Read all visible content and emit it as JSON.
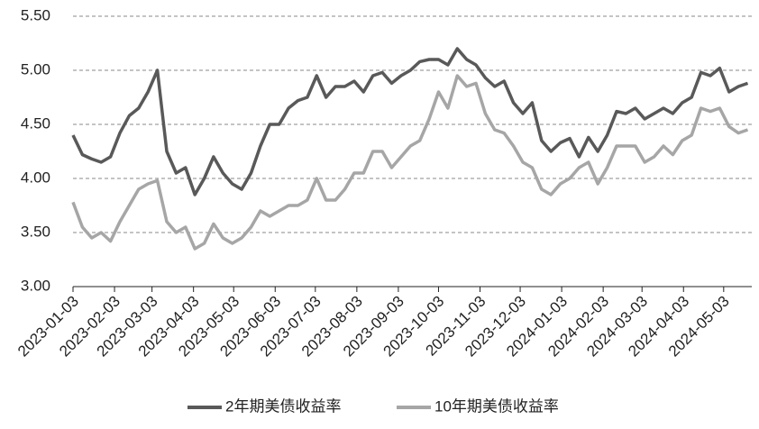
{
  "chart_data": {
    "type": "line",
    "x": [
      "2023-01-03",
      "2023-01-10",
      "2023-01-17",
      "2023-01-24",
      "2023-01-31",
      "2023-02-07",
      "2023-02-14",
      "2023-02-21",
      "2023-02-28",
      "2023-03-07",
      "2023-03-14",
      "2023-03-21",
      "2023-03-28",
      "2023-04-04",
      "2023-04-11",
      "2023-04-18",
      "2023-04-25",
      "2023-05-02",
      "2023-05-09",
      "2023-05-16",
      "2023-05-23",
      "2023-05-30",
      "2023-06-06",
      "2023-06-13",
      "2023-06-20",
      "2023-06-27",
      "2023-07-04",
      "2023-07-11",
      "2023-07-18",
      "2023-07-25",
      "2023-08-01",
      "2023-08-08",
      "2023-08-15",
      "2023-08-22",
      "2023-08-29",
      "2023-09-05",
      "2023-09-12",
      "2023-09-19",
      "2023-09-26",
      "2023-10-03",
      "2023-10-10",
      "2023-10-17",
      "2023-10-24",
      "2023-10-31",
      "2023-11-07",
      "2023-11-14",
      "2023-11-21",
      "2023-11-28",
      "2023-12-05",
      "2023-12-12",
      "2023-12-19",
      "2023-12-26",
      "2024-01-02",
      "2024-01-09",
      "2024-01-16",
      "2024-01-23",
      "2024-01-30",
      "2024-02-06",
      "2024-02-13",
      "2024-02-20",
      "2024-02-27",
      "2024-03-05",
      "2024-03-12",
      "2024-03-19",
      "2024-03-26",
      "2024-04-02",
      "2024-04-09",
      "2024-04-16",
      "2024-04-23",
      "2024-04-30",
      "2024-05-07",
      "2024-05-14",
      "2024-05-21"
    ],
    "series": [
      {
        "name": "2年期美债收益率",
        "color": "#595959",
        "values": [
          4.4,
          4.22,
          4.18,
          4.15,
          4.2,
          4.42,
          4.58,
          4.65,
          4.8,
          5.0,
          4.25,
          4.05,
          4.1,
          3.85,
          4.0,
          4.2,
          4.05,
          3.95,
          3.9,
          4.05,
          4.3,
          4.5,
          4.5,
          4.65,
          4.72,
          4.75,
          4.95,
          4.75,
          4.85,
          4.85,
          4.9,
          4.8,
          4.95,
          4.98,
          4.88,
          4.95,
          5.0,
          5.08,
          5.1,
          5.1,
          5.05,
          5.2,
          5.1,
          5.05,
          4.93,
          4.85,
          4.9,
          4.7,
          4.6,
          4.7,
          4.35,
          4.25,
          4.33,
          4.37,
          4.2,
          4.38,
          4.25,
          4.4,
          4.62,
          4.6,
          4.65,
          4.55,
          4.6,
          4.65,
          4.6,
          4.7,
          4.75,
          4.98,
          4.95,
          5.02,
          4.8,
          4.85,
          4.88
        ]
      },
      {
        "name": "10年期美债收益率",
        "color": "#a6a6a6",
        "values": [
          3.78,
          3.55,
          3.45,
          3.5,
          3.42,
          3.6,
          3.75,
          3.9,
          3.95,
          3.98,
          3.6,
          3.5,
          3.55,
          3.35,
          3.4,
          3.58,
          3.45,
          3.4,
          3.45,
          3.55,
          3.7,
          3.65,
          3.7,
          3.75,
          3.75,
          3.8,
          4.0,
          3.8,
          3.8,
          3.9,
          4.05,
          4.05,
          4.25,
          4.25,
          4.1,
          4.2,
          4.3,
          4.35,
          4.55,
          4.8,
          4.65,
          4.95,
          4.85,
          4.88,
          4.6,
          4.45,
          4.42,
          4.3,
          4.15,
          4.1,
          3.9,
          3.85,
          3.95,
          4.0,
          4.1,
          4.15,
          3.95,
          4.1,
          4.3,
          4.3,
          4.3,
          4.15,
          4.2,
          4.3,
          4.22,
          4.35,
          4.4,
          4.65,
          4.62,
          4.65,
          4.48,
          4.42,
          4.45
        ]
      }
    ],
    "xlim": [
      "2023-01-03",
      "2024-05-24"
    ],
    "xticks": [
      "2023-01-03",
      "2023-02-03",
      "2023-03-03",
      "2023-04-03",
      "2023-05-03",
      "2023-06-03",
      "2023-07-03",
      "2023-08-03",
      "2023-09-03",
      "2023-10-03",
      "2023-11-03",
      "2023-12-03",
      "2024-01-03",
      "2024-02-03",
      "2024-03-03",
      "2024-04-03",
      "2024-05-03"
    ],
    "ylim": [
      3,
      5.5
    ],
    "yticks": [
      {
        "value": 3,
        "label": "3.00"
      },
      {
        "value": 3.5,
        "label": "3.50"
      },
      {
        "value": 4,
        "label": "4.00"
      },
      {
        "value": 4.5,
        "label": "4.50"
      },
      {
        "value": 5,
        "label": "5.00"
      },
      {
        "value": 5.5,
        "label": "5.50"
      }
    ],
    "grid": true,
    "legend": "bottom"
  }
}
